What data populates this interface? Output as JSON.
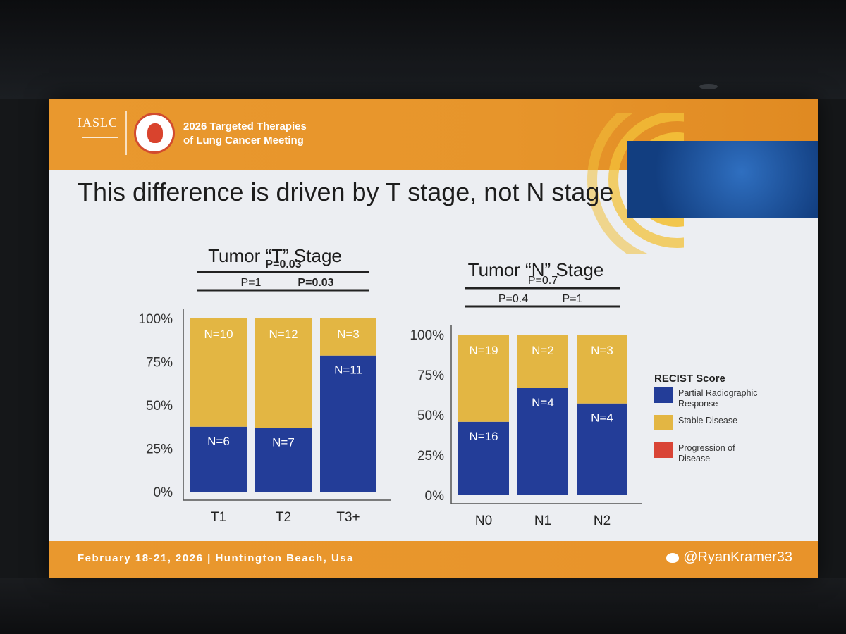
{
  "header": {
    "org": "IASLC",
    "meeting_title_line1": "2026 Targeted Therapies",
    "meeting_title_line2": "of Lung Cancer Meeting"
  },
  "slide_title": "This difference is driven by T stage, not N stage",
  "footer": {
    "dates_location": "February 18-21, 2026  |  Huntington Beach, Usa",
    "handle": "@RyanKramer33"
  },
  "colors": {
    "partial": "#233d98",
    "stable": "#e3b643",
    "progression": "#d94436",
    "accent_orange": "#e9982e"
  },
  "legend": {
    "title": "RECIST Score",
    "items": [
      {
        "label_line1": "Partial Radiographic",
        "label_line2": "Response",
        "color_key": "partial"
      },
      {
        "label_line1": "Stable Disease",
        "label_line2": "",
        "color_key": "stable"
      },
      {
        "label_line1": "Progression of",
        "label_line2": "Disease",
        "color_key": "progression"
      }
    ]
  },
  "chart_data": [
    {
      "type": "bar",
      "stacked": true,
      "title": "Tumor “T” Stage",
      "categories": [
        "T1",
        "T2",
        "T3+"
      ],
      "yticks": [
        "0%",
        "25%",
        "50%",
        "75%",
        "100%"
      ],
      "ylim": [
        0,
        100
      ],
      "series": [
        {
          "name": "Partial Radiographic Response",
          "counts": [
            6,
            7,
            11
          ],
          "labels": [
            "N=6",
            "N=7",
            "N=11"
          ],
          "color_key": "partial"
        },
        {
          "name": "Stable Disease",
          "counts": [
            10,
            12,
            3
          ],
          "labels": [
            "N=10",
            "N=12",
            "N=3"
          ],
          "color_key": "stable"
        }
      ],
      "comparisons": [
        {
          "label": "P=0.03",
          "from": 0,
          "to": 2,
          "level": 2,
          "bold": true
        },
        {
          "label": "P=1",
          "from": 0,
          "to": 1,
          "level": 1,
          "bold": false
        },
        {
          "label": "P=0.03",
          "from": 1,
          "to": 2,
          "level": 1,
          "bold": true
        }
      ]
    },
    {
      "type": "bar",
      "stacked": true,
      "title": "Tumor “N” Stage",
      "categories": [
        "N0",
        "N1",
        "N2"
      ],
      "yticks": [
        "0%",
        "25%",
        "50%",
        "75%",
        "100%"
      ],
      "ylim": [
        0,
        100
      ],
      "series": [
        {
          "name": "Partial Radiographic Response",
          "counts": [
            16,
            4,
            4
          ],
          "labels": [
            "N=16",
            "N=4",
            "N=4"
          ],
          "color_key": "partial"
        },
        {
          "name": "Stable Disease",
          "counts": [
            19,
            2,
            3
          ],
          "labels": [
            "N=19",
            "N=2",
            "N=3"
          ],
          "color_key": "stable"
        }
      ],
      "comparisons": [
        {
          "label": "P=0.7",
          "from": 0,
          "to": 2,
          "level": 2,
          "bold": false
        },
        {
          "label": "P=0.4",
          "from": 0,
          "to": 1,
          "level": 1,
          "bold": false
        },
        {
          "label": "P=1",
          "from": 1,
          "to": 2,
          "level": 1,
          "bold": false
        }
      ]
    }
  ]
}
